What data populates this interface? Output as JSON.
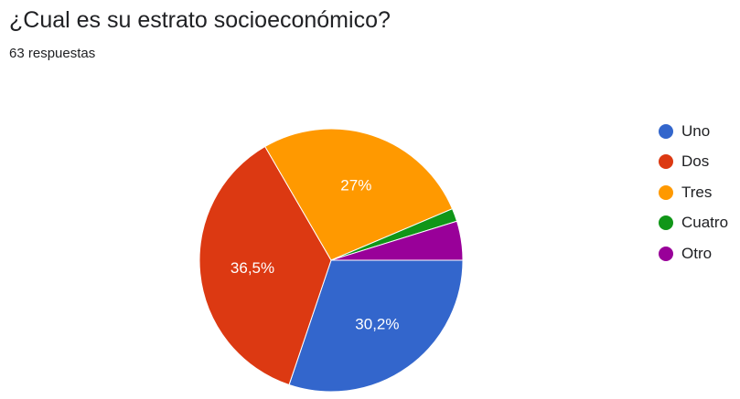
{
  "chart_data": {
    "type": "pie",
    "title": "¿Cual es su estrato socioeconómico?",
    "subtitle": "63 respuestas",
    "legend_position": "right",
    "slices": [
      {
        "label": "Uno",
        "value": 30.2,
        "display": "30,2%",
        "color": "#3366cc"
      },
      {
        "label": "Dos",
        "value": 36.5,
        "display": "36,5%",
        "color": "#dc3912"
      },
      {
        "label": "Tres",
        "value": 27.0,
        "display": "27%",
        "color": "#ff9900"
      },
      {
        "label": "Cuatro",
        "value": 1.6,
        "display": "",
        "color": "#109618"
      },
      {
        "label": "Otro",
        "value": 4.8,
        "display": "",
        "color": "#990099"
      }
    ]
  }
}
